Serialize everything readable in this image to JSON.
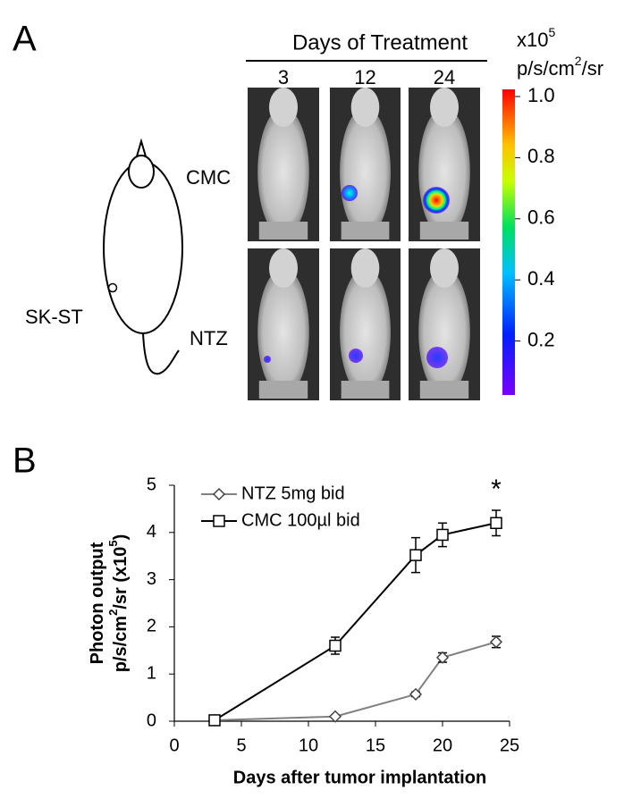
{
  "panel_a": {
    "panel_label": "A",
    "header": "Days of Treatment",
    "columns": [
      "3",
      "12",
      "24"
    ],
    "rows": [
      "CMC",
      "NTZ"
    ],
    "model_label": "SK-ST",
    "unit_lines": [
      [
        "x10",
        "5"
      ],
      [
        "p/s/cm",
        "2",
        "/sr"
      ]
    ],
    "colorbar_ticks": [
      {
        "value": 1,
        "label": "1.0"
      },
      0.8,
      0.6,
      0.4,
      0.2
    ]
  },
  "chart_data": {
    "type": "line",
    "panel_label": "B",
    "xlabel": "Days after tumor implantation",
    "ylabel_lines": [
      [
        "Photon output"
      ],
      [
        "p/s/cm",
        "2",
        "/sr (x10",
        "5",
        ")"
      ]
    ],
    "x": [
      3,
      12,
      18,
      20,
      24
    ],
    "series": [
      {
        "name": "NTZ 5mg bid",
        "color": "#808080",
        "marker": "diamond",
        "values": [
          0.02,
          0.1,
          0.57,
          1.35,
          1.68
        ],
        "errors": [
          0.04,
          0.03,
          0.05,
          0.1,
          0.12
        ]
      },
      {
        "name": "CMC 100µl bid",
        "color": "#000000",
        "marker": "square",
        "values": [
          0.02,
          1.6,
          3.52,
          3.95,
          4.2
        ],
        "errors": [
          0.04,
          0.18,
          0.37,
          0.25,
          0.27
        ]
      }
    ],
    "xlim": [
      0,
      25
    ],
    "xticks": [
      0,
      5,
      10,
      15,
      20,
      25
    ],
    "ylim": [
      0,
      5
    ],
    "yticks": [
      0,
      1,
      2,
      3,
      4,
      5
    ],
    "annotation": "*"
  }
}
